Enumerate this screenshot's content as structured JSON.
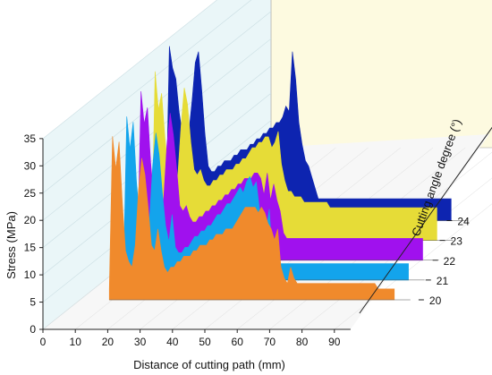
{
  "chart_data": {
    "type": "area",
    "title": "",
    "xlabel": "Distance of cutting path (mm)",
    "ylabel": "Stress (MPa)",
    "zlabel": "Cutting angle degree (°)",
    "xlim": [
      0,
      95
    ],
    "ylim": [
      0,
      35
    ],
    "x_ticks": [
      "0",
      "10",
      "20",
      "30",
      "40",
      "50",
      "60",
      "70",
      "80",
      "90"
    ],
    "y_ticks": [
      "0",
      "5",
      "10",
      "15",
      "20",
      "25",
      "30",
      "35"
    ],
    "z_ticks": [
      "20",
      "21",
      "22",
      "23",
      "24"
    ],
    "grid": true,
    "series": [
      {
        "name": "20",
        "color": "#f08a2c",
        "x": [
          10,
          11,
          12,
          13,
          14,
          15,
          16,
          17,
          18,
          19,
          20,
          21,
          22,
          23,
          24,
          25,
          26,
          27,
          28,
          29,
          30,
          31,
          32,
          33,
          34,
          35,
          36,
          37,
          38,
          39,
          40,
          41,
          42,
          43,
          44,
          45,
          46,
          47,
          48,
          49,
          50,
          51,
          52,
          53,
          54,
          55,
          56,
          57,
          58,
          59,
          60,
          61,
          62,
          63,
          64,
          65,
          66,
          67,
          68,
          69,
          70,
          71,
          72,
          73,
          74,
          75,
          76,
          77,
          78,
          79,
          80,
          81,
          82,
          83,
          84,
          85,
          86,
          87,
          88,
          89,
          90,
          91,
          92,
          93,
          94,
          95,
          96,
          97,
          98
        ],
        "y": [
          2,
          30,
          24,
          29,
          18,
          9,
          7,
          6,
          10,
          20,
          26,
          23,
          17,
          10,
          9,
          13,
          9,
          6,
          5,
          6,
          6,
          7,
          7,
          8,
          8,
          8,
          9,
          9,
          10,
          10,
          10,
          11,
          11,
          12,
          12,
          12,
          13,
          13,
          13,
          14,
          15,
          16,
          17,
          17,
          17,
          17,
          16,
          17,
          16,
          14,
          13,
          11,
          13,
          6,
          4,
          3,
          6,
          4,
          3,
          3,
          3,
          3,
          3,
          3,
          3,
          3,
          3,
          3,
          3,
          3,
          3,
          3,
          3,
          3,
          3,
          3,
          3,
          3,
          3,
          3,
          3,
          3,
          3,
          2,
          2,
          2,
          2,
          2,
          2
        ]
      },
      {
        "name": "21",
        "color": "#13a4ec",
        "x": [
          10,
          11,
          12,
          13,
          14,
          15,
          16,
          17,
          18,
          19,
          20,
          21,
          22,
          23,
          24,
          25,
          26,
          27,
          28,
          29,
          30,
          31,
          32,
          33,
          34,
          35,
          36,
          37,
          38,
          39,
          40,
          41,
          42,
          43,
          44,
          45,
          46,
          47,
          48,
          49,
          50,
          51,
          52,
          53,
          54,
          55,
          56,
          57,
          58,
          59,
          60,
          61,
          62,
          63,
          64,
          65,
          66,
          67,
          68,
          69,
          70,
          71,
          72,
          73,
          74,
          75,
          76,
          77,
          78,
          79,
          80,
          81,
          82,
          83,
          84,
          85,
          86,
          87,
          88,
          89,
          90,
          91,
          92,
          93,
          94,
          95,
          96,
          97,
          98
        ],
        "y": [
          2,
          30,
          24,
          29,
          18,
          11,
          10,
          9,
          11,
          21,
          27,
          23,
          16,
          10,
          7,
          12,
          6,
          5,
          5,
          6,
          6,
          7,
          8,
          8,
          9,
          9,
          10,
          10,
          11,
          12,
          12,
          13,
          14,
          14,
          15,
          16,
          17,
          16,
          18,
          19,
          17,
          18,
          13,
          11,
          9,
          13,
          4,
          3,
          3,
          3,
          3,
          3,
          3,
          3,
          3,
          3,
          3,
          3,
          3,
          3,
          3,
          3,
          3,
          3,
          3,
          3,
          3,
          3,
          3,
          3,
          3,
          3,
          3,
          3,
          3,
          3,
          3,
          3,
          3,
          3,
          3,
          3,
          3,
          3,
          3,
          3,
          3,
          3,
          3
        ]
      },
      {
        "name": "22",
        "color": "#a011ee",
        "x": [
          10,
          11,
          12,
          13,
          14,
          15,
          16,
          17,
          18,
          19,
          20,
          21,
          22,
          23,
          24,
          25,
          26,
          27,
          28,
          29,
          30,
          31,
          32,
          33,
          34,
          35,
          36,
          37,
          38,
          39,
          40,
          41,
          42,
          43,
          44,
          45,
          46,
          47,
          48,
          49,
          50,
          51,
          52,
          53,
          54,
          55,
          56,
          57,
          58,
          59,
          60,
          61,
          62,
          63,
          64,
          65,
          66,
          67,
          68,
          69,
          70,
          71,
          72,
          73,
          74,
          75,
          76,
          77,
          78,
          79,
          80,
          81,
          82,
          83,
          84,
          85,
          86,
          87,
          88,
          89,
          90,
          91,
          92,
          93,
          94,
          95,
          96,
          97,
          98
        ],
        "y": [
          2,
          31,
          25,
          28,
          18,
          11,
          9,
          9,
          11,
          21,
          27,
          23,
          17,
          10,
          9,
          10,
          8,
          7,
          7,
          8,
          8,
          9,
          9,
          10,
          10,
          11,
          11,
          12,
          12,
          13,
          13,
          14,
          14,
          15,
          15,
          15,
          16,
          16,
          15,
          12,
          16,
          11,
          14,
          11,
          9,
          5,
          4,
          4,
          4,
          4,
          4,
          4,
          4,
          4,
          4,
          4,
          4,
          4,
          4,
          4,
          4,
          4,
          4,
          4,
          4,
          4,
          4,
          4,
          4,
          4,
          4,
          4,
          4,
          4,
          4,
          4,
          4,
          4,
          4,
          4,
          4,
          4,
          4,
          4,
          4,
          4,
          4,
          4,
          4
        ]
      },
      {
        "name": "23",
        "color": "#e6dc37",
        "x": [
          10,
          11,
          12,
          13,
          14,
          15,
          16,
          17,
          18,
          19,
          20,
          21,
          22,
          23,
          24,
          25,
          26,
          27,
          28,
          29,
          30,
          31,
          32,
          33,
          34,
          35,
          36,
          37,
          38,
          39,
          40,
          41,
          42,
          43,
          44,
          45,
          46,
          47,
          48,
          49,
          50,
          51,
          52,
          53,
          54,
          55,
          56,
          57,
          58,
          59,
          60,
          61,
          62,
          63,
          64,
          65,
          66,
          67,
          68,
          69,
          70,
          71,
          72,
          73,
          74,
          75,
          76,
          77,
          78,
          79,
          80,
          81,
          82,
          83,
          84,
          85,
          86,
          87,
          88,
          89,
          90,
          91,
          92,
          93,
          94,
          95,
          96,
          97,
          98
        ],
        "y": [
          2,
          31,
          24,
          27,
          19,
          13,
          11,
          10,
          12,
          21,
          28,
          25,
          18,
          13,
          12,
          13,
          11,
          10,
          10,
          11,
          11,
          12,
          12,
          13,
          13,
          13,
          14,
          14,
          15,
          15,
          16,
          17,
          17,
          18,
          18,
          19,
          19,
          17,
          18,
          20,
          14,
          11,
          9,
          9,
          8,
          8,
          8,
          7,
          7,
          7,
          7,
          7,
          7,
          7,
          7,
          6,
          6,
          6,
          6,
          6,
          6,
          6,
          6,
          6,
          6,
          6,
          6,
          6,
          6,
          6,
          6,
          6,
          6,
          6,
          6,
          6,
          6,
          6,
          6,
          6,
          6,
          6,
          6,
          6,
          6,
          6,
          6,
          6,
          6
        ]
      },
      {
        "name": "24",
        "color": "#0d24b0",
        "x": [
          10,
          11,
          12,
          13,
          14,
          15,
          16,
          17,
          18,
          19,
          20,
          21,
          22,
          23,
          24,
          25,
          26,
          27,
          28,
          29,
          30,
          31,
          32,
          33,
          34,
          35,
          36,
          37,
          38,
          39,
          40,
          41,
          42,
          43,
          44,
          45,
          46,
          47,
          48,
          49,
          50,
          51,
          52,
          53,
          54,
          55,
          56,
          57,
          58,
          59,
          60,
          61,
          62,
          63,
          64,
          65,
          66,
          67,
          68,
          69,
          70,
          71,
          72,
          73,
          74,
          75,
          76,
          77,
          78,
          79,
          80,
          81,
          82,
          83,
          84,
          85,
          86,
          87,
          88,
          89,
          90,
          91,
          92,
          93,
          94,
          95,
          96,
          97,
          98
        ],
        "y": [
          2,
          32,
          28,
          26,
          20,
          16,
          15,
          16,
          22,
          29,
          31,
          24,
          16,
          10,
          9,
          9,
          10,
          10,
          11,
          11,
          11,
          12,
          12,
          13,
          13,
          13,
          14,
          14,
          15,
          15,
          16,
          16,
          17,
          17,
          18,
          18,
          19,
          21,
          20,
          31,
          26,
          18,
          14,
          11,
          10,
          8,
          6,
          4,
          4,
          4,
          4,
          4,
          4,
          4,
          4,
          4,
          4,
          4,
          4,
          4,
          4,
          4,
          4,
          4,
          4,
          4,
          4,
          4,
          4,
          4,
          4,
          4,
          4,
          4,
          4,
          4,
          4,
          4,
          4,
          4,
          4,
          4,
          4,
          4,
          4,
          4,
          4,
          4,
          4
        ]
      }
    ]
  }
}
